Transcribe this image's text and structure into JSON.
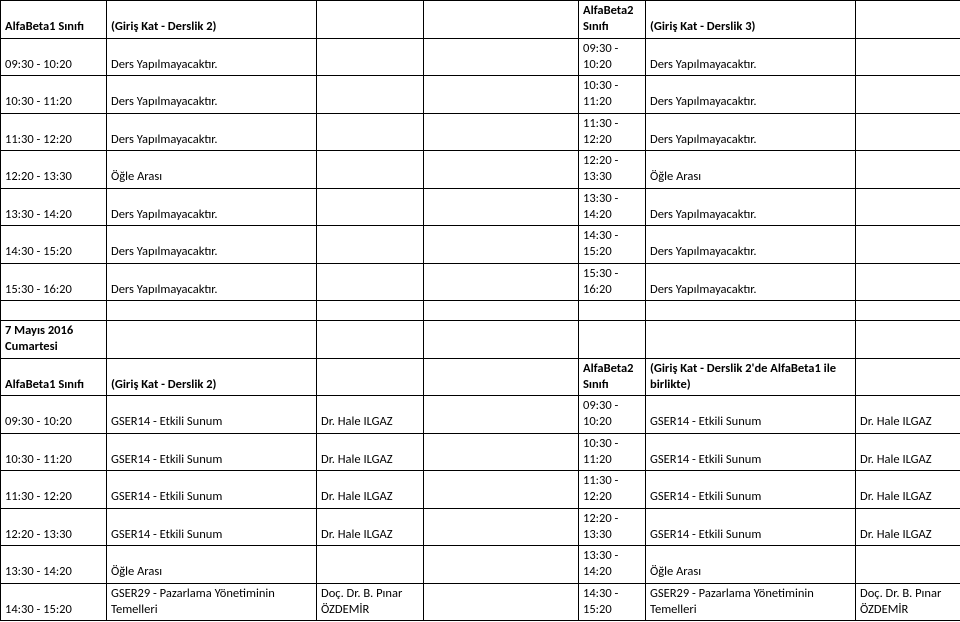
{
  "classA": {
    "header": "AlfaBeta1 Sınıfı",
    "room": "(Giriş Kat - Derslik 2)"
  },
  "classB": {
    "header": "AlfaBeta2 Sınıfı",
    "room": "(Giriş Kat - Derslik 3)",
    "room2": "(Giriş Kat - Derslik 2'de AlfaBeta1 ile birlikte)"
  },
  "date2": "7 Mayıs 2016 Cumartesi",
  "block1": [
    {
      "t1": "09:30 - 10:20",
      "a": "Ders Yapılmayacaktır.",
      "ai": "",
      "t2": "09:30 - 10:20",
      "b": "Ders Yapılmayacaktır.",
      "bi": ""
    },
    {
      "t1": "10:30 - 11:20",
      "a": "Ders Yapılmayacaktır.",
      "ai": "",
      "t2": "10:30 - 11:20",
      "b": "Ders Yapılmayacaktır.",
      "bi": ""
    },
    {
      "t1": "11:30 - 12:20",
      "a": "Ders Yapılmayacaktır.",
      "ai": "",
      "t2": "11:30 - 12:20",
      "b": "Ders Yapılmayacaktır.",
      "bi": ""
    },
    {
      "t1": "12:20 - 13:30",
      "a": "Öğle Arası",
      "ai": "",
      "t2": "12:20 - 13:30",
      "b": "Öğle Arası",
      "bi": ""
    },
    {
      "t1": "13:30 - 14:20",
      "a": "Ders Yapılmayacaktır.",
      "ai": "",
      "t2": "13:30 - 14:20",
      "b": "Ders Yapılmayacaktır.",
      "bi": ""
    },
    {
      "t1": "14:30 - 15:20",
      "a": "Ders Yapılmayacaktır.",
      "ai": "",
      "t2": "14:30 - 15:20",
      "b": "Ders Yapılmayacaktır.",
      "bi": ""
    },
    {
      "t1": "15:30 - 16:20",
      "a": "Ders Yapılmayacaktır.",
      "ai": "",
      "t2": "15:30 - 16:20",
      "b": "Ders Yapılmayacaktır.",
      "bi": ""
    }
  ],
  "block2": [
    {
      "t1": "09:30 - 10:20",
      "a": "GSER14 - Etkili Sunum",
      "ai": "Dr. Hale ILGAZ",
      "t2": "09:30 - 10:20",
      "b": "GSER14 - Etkili Sunum",
      "bi": "Dr. Hale ILGAZ"
    },
    {
      "t1": "10:30 - 11:20",
      "a": "GSER14 - Etkili Sunum",
      "ai": "Dr. Hale ILGAZ",
      "t2": "10:30 - 11:20",
      "b": "GSER14 - Etkili Sunum",
      "bi": "Dr. Hale ILGAZ"
    },
    {
      "t1": "11:30 - 12:20",
      "a": "GSER14 - Etkili Sunum",
      "ai": "Dr. Hale ILGAZ",
      "t2": "11:30 - 12:20",
      "b": "GSER14 - Etkili Sunum",
      "bi": "Dr. Hale ILGAZ"
    },
    {
      "t1": "12:20 - 13:30",
      "a": "GSER14 - Etkili Sunum",
      "ai": "Dr. Hale ILGAZ",
      "t2": "12:20 - 13:30",
      "b": "GSER14 - Etkili Sunum",
      "bi": "Dr. Hale ILGAZ"
    },
    {
      "t1": "13:30 - 14:20",
      "a": "Öğle Arası",
      "ai": "",
      "t2": "13:30 - 14:20",
      "b": "Öğle Arası",
      "bi": ""
    },
    {
      "t1": "14:30 - 15:20",
      "a": "GSER29 - Pazarlama Yönetiminin Temelleri",
      "ai": "Doç. Dr. B. Pınar ÖZDEMİR",
      "t2": "14:30 - 15:20",
      "b": "GSER29 - Pazarlama Yönetiminin Temelleri",
      "bi": "Doç. Dr. B. Pınar ÖZDEMİR"
    }
  ]
}
